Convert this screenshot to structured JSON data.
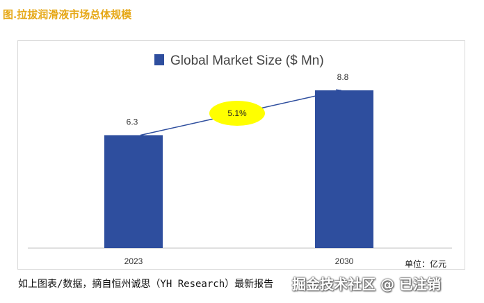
{
  "page": {
    "title": "图.拉拔润滑液市场总体规模",
    "caption": "如上图表/数据，摘自恒州诚思（YH Research）最新报告",
    "unit": "单位：亿元",
    "watermark": "掘金技术社区 @ 已注销"
  },
  "chart_data": {
    "type": "bar",
    "categories": [
      "2023",
      "2030"
    ],
    "series": [
      {
        "name": "Global Market Size ($ Mn)",
        "values": [
          6.3,
          8.8
        ],
        "color": "#2e4e9e"
      }
    ],
    "ylim": [
      0,
      10
    ],
    "grid": false,
    "legend": "top-center",
    "annotation": {
      "text": "5.1%",
      "color": "#ffff00"
    },
    "trend_line_color": "#2e4e9e"
  }
}
